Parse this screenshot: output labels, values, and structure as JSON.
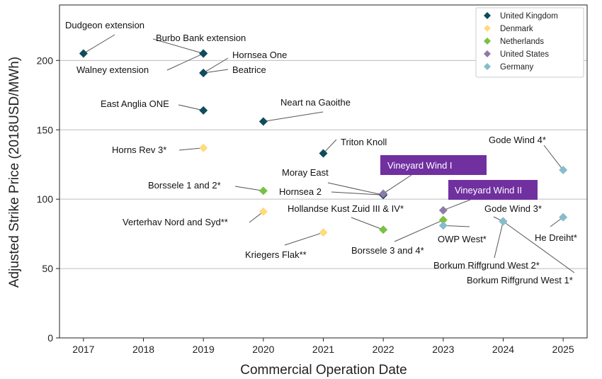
{
  "chart_data": {
    "type": "scatter",
    "title": "",
    "xlabel": "Commercial Operation Date",
    "ylabel": "Adjusted Strike Price (2018USD/MWh)",
    "xlim": [
      2016.6,
      2025.4
    ],
    "ylim": [
      0,
      240
    ],
    "x_ticks": [
      2017,
      2018,
      2019,
      2020,
      2021,
      2022,
      2023,
      2024,
      2025
    ],
    "y_ticks": [
      0,
      50,
      100,
      150,
      200
    ],
    "grid": "horizontal",
    "legend_position": "top-right",
    "series": [
      {
        "name": "United Kingdom",
        "color": "#0f4c5c",
        "points": [
          {
            "label": "Dudgeon extension",
            "x": 2017,
            "y": 205
          },
          {
            "label": "Burbo Bank extension",
            "x": 2019,
            "y": 205
          },
          {
            "label": "Walney extension",
            "x": 2019,
            "y": 205
          },
          {
            "label": "Hornsea One",
            "x": 2019,
            "y": 191
          },
          {
            "label": "Beatrice",
            "x": 2019,
            "y": 191
          },
          {
            "label": "East Anglia ONE",
            "x": 2019,
            "y": 164
          },
          {
            "label": "Neart na Gaoithe",
            "x": 2020,
            "y": 156
          },
          {
            "label": "Triton Knoll",
            "x": 2021,
            "y": 133
          },
          {
            "label": "Moray East",
            "x": 2022,
            "y": 103
          },
          {
            "label": "Hornsea 2",
            "x": 2022,
            "y": 103
          }
        ]
      },
      {
        "name": "Denmark",
        "color": "#fddc7f",
        "points": [
          {
            "label": "Horns Rev 3*",
            "x": 2019,
            "y": 137
          },
          {
            "label": "Verterhav Nord and Syd**",
            "x": 2020,
            "y": 91
          },
          {
            "label": "Kriegers Flak**",
            "x": 2021,
            "y": 76
          }
        ]
      },
      {
        "name": "Netherlands",
        "color": "#7ac143",
        "points": [
          {
            "label": "Borssele 1 and 2*",
            "x": 2020,
            "y": 106
          },
          {
            "label": "Hollandse Kust Zuid III & IV*",
            "x": 2022,
            "y": 78
          },
          {
            "label": "Borssele 3 and 4*",
            "x": 2023,
            "y": 85
          }
        ]
      },
      {
        "name": "United States",
        "color": "#8e7aa8",
        "points": [
          {
            "label": "Vineyard Wind I",
            "x": 2022,
            "y": 104
          },
          {
            "label": "Vineyard Wind II",
            "x": 2023,
            "y": 92
          }
        ]
      },
      {
        "name": "Germany",
        "color": "#86bccb",
        "points": [
          {
            "label": "Gode Wind 4*",
            "x": 2025,
            "y": 121
          },
          {
            "label": "He Dreiht*",
            "x": 2025,
            "y": 87
          },
          {
            "label": "OWP West*",
            "x": 2023,
            "y": 81
          },
          {
            "label": "Gode Wind 3*",
            "x": 2024,
            "y": 84
          },
          {
            "label": "Borkum Riffgrund West 2*",
            "x": 2024,
            "y": 84
          },
          {
            "label": "Borkum Riffgrund West 1*",
            "x": 2024,
            "y": 84
          }
        ]
      }
    ],
    "highlighted_labels": [
      "Vineyard Wind I",
      "Vineyard Wind II"
    ],
    "highlight_color": "#7030a0"
  }
}
